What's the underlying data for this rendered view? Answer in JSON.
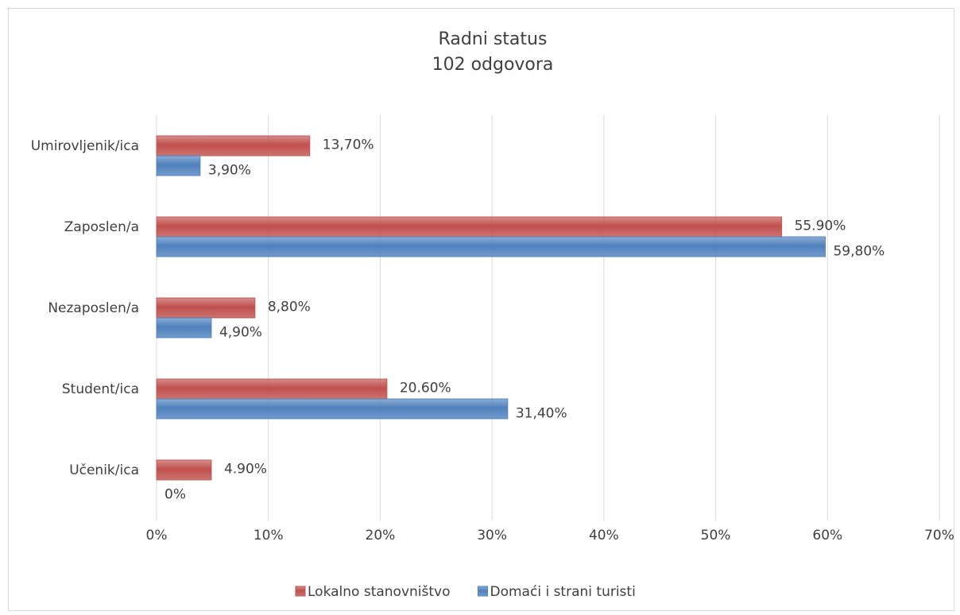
{
  "chart_data": {
    "type": "bar",
    "orientation": "horizontal",
    "title": "Radni status",
    "subtitle": "102 odgovora",
    "categories": [
      "Umirovljenik/ica",
      "Zaposlen/a",
      "Nezaposlen/a",
      "Student/ica",
      "Učenik/ica"
    ],
    "series": [
      {
        "name": "Lokalno stanovništvo",
        "color": "#c0504d",
        "values": [
          13.7,
          55.9,
          8.8,
          20.6,
          4.9
        ],
        "value_labels": [
          "13,70%",
          "55.90%",
          "8,80%",
          "20.60%",
          "4.90%"
        ]
      },
      {
        "name": "Domaći i strani turisti",
        "color": "#4f81bd",
        "values": [
          3.9,
          59.8,
          4.9,
          31.4,
          0
        ],
        "value_labels": [
          "3,90%",
          "59,80%",
          "4,90%",
          "31,40%",
          "0%"
        ]
      }
    ],
    "xlim": [
      0,
      70
    ],
    "xticks": [
      {
        "value": 0,
        "label": "0%"
      },
      {
        "value": 10,
        "label": "10%"
      },
      {
        "value": 20,
        "label": "20%"
      },
      {
        "value": 30,
        "label": "30%"
      },
      {
        "value": 40,
        "label": "40%"
      },
      {
        "value": 50,
        "label": "50%"
      },
      {
        "value": 60,
        "label": "60%"
      },
      {
        "value": 70,
        "label": "70%"
      }
    ],
    "grid": true,
    "legend": "bottom"
  }
}
